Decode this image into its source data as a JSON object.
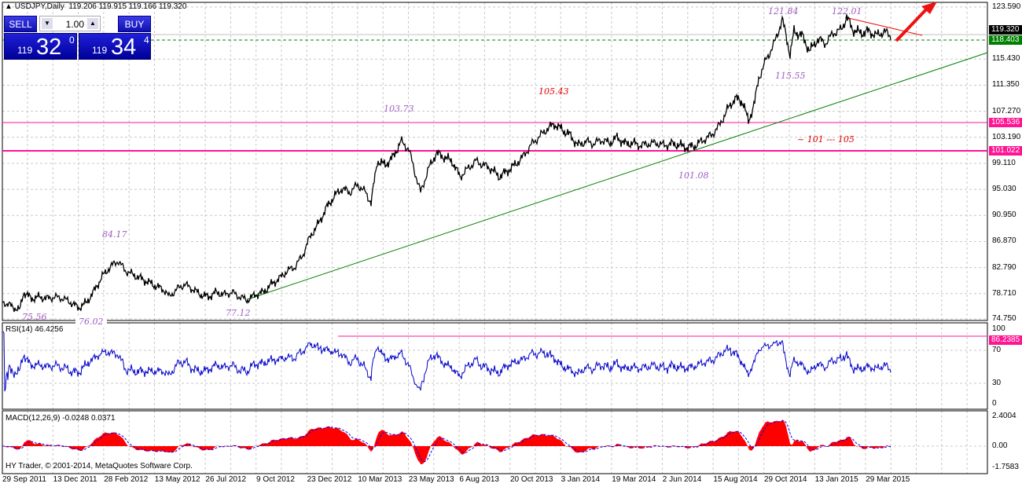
{
  "header": {
    "symbol": "USDJPY,Daily",
    "ohlc": "119.206 119.915 119.166 119.320"
  },
  "trade_panel": {
    "sell_label": "SELL",
    "buy_label": "BUY",
    "lot": "1.00",
    "sell_prefix": "119",
    "sell_big": "32",
    "sell_sup": "0",
    "buy_prefix": "119",
    "buy_big": "34",
    "buy_sup": "4"
  },
  "price_axis": [
    "123.590",
    "115.430",
    "111.350",
    "107.270",
    "103.190",
    "99.110",
    "95.030",
    "90.950",
    "86.870",
    "82.790",
    "78.710",
    "74.750"
  ],
  "price_tags": {
    "current": "119.320",
    "green": "118.403",
    "pink1": "105.536",
    "pink2": "101.022"
  },
  "annotations": {
    "a1": "121.84",
    "a2": "122.01",
    "a3": "115.55",
    "a4": "105.43",
    "a5": "103.73",
    "a6": "~ 101 --- 105",
    "a7": "101.08",
    "a8": "84.17",
    "a9": "75.56",
    "a10": "76.02",
    "a11": "77.12"
  },
  "rsi": {
    "label": "RSI(14) 46.4256",
    "axis": [
      "100",
      "70",
      "30",
      "0"
    ],
    "tag": "86.2385"
  },
  "macd": {
    "label": "MACD(12,26,9) -0.0248 0.0371",
    "axis": [
      "2.4004",
      "0.00",
      "-1.7583"
    ]
  },
  "copyright": "HY Trader, © 2001-2014, MetaQuotes Software Corp.",
  "dates": [
    "29 Sep 2011",
    "13 Dec 2011",
    "28 Feb 2012",
    "13 May 2012",
    "26 Jul 2012",
    "9 Oct 2012",
    "23 Dec 2012",
    "10 Mar 2013",
    "23 May 2013",
    "6 Aug 2013",
    "20 Oct 2013",
    "3 Jan 2014",
    "19 Mar 2014",
    "2 Jun 2014",
    "15 Aug 2014",
    "29 Oct 2014",
    "13 Jan 2015",
    "29 Mar 2015"
  ],
  "colors": {
    "price": "#000000",
    "rsi": "#0000c8",
    "macd": "#ff0000",
    "signal": "#0000ff",
    "trend": "#008000",
    "resistance": "#ff1493",
    "arrow": "#ee1111"
  },
  "chart_data": {
    "type": "line",
    "title": "USDJPY,Daily",
    "ylim": [
      74.75,
      123.59
    ],
    "levels": {
      "current": 119.32,
      "dashed": 118.403,
      "resistance1": 105.536,
      "resistance2": 101.022
    },
    "series": [
      [
        5,
        77.33
      ],
      [
        15,
        76.72
      ],
      [
        25,
        76.1
      ],
      [
        30,
        78.93
      ],
      [
        40,
        77.95
      ],
      [
        50,
        78.19
      ],
      [
        60,
        77.95
      ],
      [
        70,
        78.19
      ],
      [
        80,
        77.95
      ],
      [
        90,
        77.33
      ],
      [
        100,
        76.47
      ],
      [
        110,
        77.33
      ],
      [
        120,
        79.18
      ],
      [
        130,
        81.39
      ],
      [
        140,
        82.87
      ],
      [
        150,
        83.85
      ],
      [
        160,
        82.25
      ],
      [
        170,
        81.64
      ],
      [
        180,
        81.02
      ],
      [
        190,
        80.41
      ],
      [
        200,
        79.79
      ],
      [
        210,
        79.18
      ],
      [
        215,
        78.19
      ],
      [
        225,
        79.42
      ],
      [
        235,
        80.16
      ],
      [
        245,
        79.42
      ],
      [
        255,
        78.56
      ],
      [
        265,
        78.19
      ],
      [
        275,
        78.93
      ],
      [
        285,
        78.56
      ],
      [
        295,
        78.93
      ],
      [
        305,
        78.19
      ],
      [
        315,
        77.7
      ],
      [
        325,
        78.56
      ],
      [
        335,
        78.93
      ],
      [
        345,
        80.16
      ],
      [
        355,
        81.02
      ],
      [
        365,
        82.25
      ],
      [
        375,
        82.87
      ],
      [
        385,
        84.71
      ],
      [
        395,
        87.79
      ],
      [
        405,
        89.63
      ],
      [
        415,
        92.09
      ],
      [
        425,
        93.94
      ],
      [
        435,
        95.17
      ],
      [
        445,
        94.55
      ],
      [
        455,
        95.78
      ],
      [
        465,
        94.55
      ],
      [
        472,
        92.95
      ],
      [
        480,
        99.47
      ],
      [
        490,
        98.86
      ],
      [
        500,
        100.09
      ],
      [
        510,
        102.55
      ],
      [
        520,
        101.32
      ],
      [
        528,
        97.63
      ],
      [
        535,
        94.55
      ],
      [
        545,
        98.24
      ],
      [
        555,
        100.7
      ],
      [
        565,
        100.09
      ],
      [
        575,
        99.47
      ],
      [
        585,
        97.01
      ],
      [
        595,
        98.24
      ],
      [
        605,
        99.47
      ],
      [
        615,
        98.86
      ],
      [
        625,
        98.24
      ],
      [
        635,
        97.01
      ],
      [
        645,
        97.87
      ],
      [
        655,
        98.86
      ],
      [
        665,
        100.09
      ],
      [
        675,
        101.93
      ],
      [
        685,
        103.16
      ],
      [
        695,
        104.39
      ],
      [
        705,
        105.25
      ],
      [
        715,
        104.39
      ],
      [
        725,
        103.53
      ],
      [
        735,
        101.93
      ],
      [
        745,
        102.55
      ],
      [
        755,
        102.18
      ],
      [
        765,
        102.79
      ],
      [
        775,
        102.3
      ],
      [
        785,
        103.16
      ],
      [
        795,
        102.18
      ],
      [
        805,
        102.3
      ],
      [
        815,
        101.93
      ],
      [
        825,
        102.18
      ],
      [
        835,
        102.3
      ],
      [
        845,
        101.93
      ],
      [
        855,
        102.18
      ],
      [
        865,
        101.93
      ],
      [
        875,
        101.56
      ],
      [
        885,
        101.93
      ],
      [
        895,
        102.79
      ],
      [
        905,
        103.53
      ],
      [
        915,
        105.01
      ],
      [
        925,
        107.47
      ],
      [
        935,
        109.31
      ],
      [
        945,
        108.7
      ],
      [
        952,
        105.62
      ],
      [
        960,
        108.7
      ],
      [
        965,
        112.39
      ],
      [
        975,
        115.46
      ],
      [
        985,
        117.92
      ],
      [
        995,
        121.61
      ],
      [
        1000,
        119.15
      ],
      [
        1005,
        116.08
      ],
      [
        1010,
        119.77
      ],
      [
        1020,
        119.15
      ],
      [
        1030,
        116.69
      ],
      [
        1040,
        118.54
      ],
      [
        1050,
        117.92
      ],
      [
        1060,
        119.52
      ],
      [
        1070,
        120.01
      ],
      [
        1077,
        121.98
      ],
      [
        1085,
        120.01
      ],
      [
        1095,
        119.52
      ],
      [
        1105,
        119.77
      ],
      [
        1115,
        119.15
      ],
      [
        1125,
        119.77
      ],
      [
        1133,
        119.03
      ]
    ]
  }
}
